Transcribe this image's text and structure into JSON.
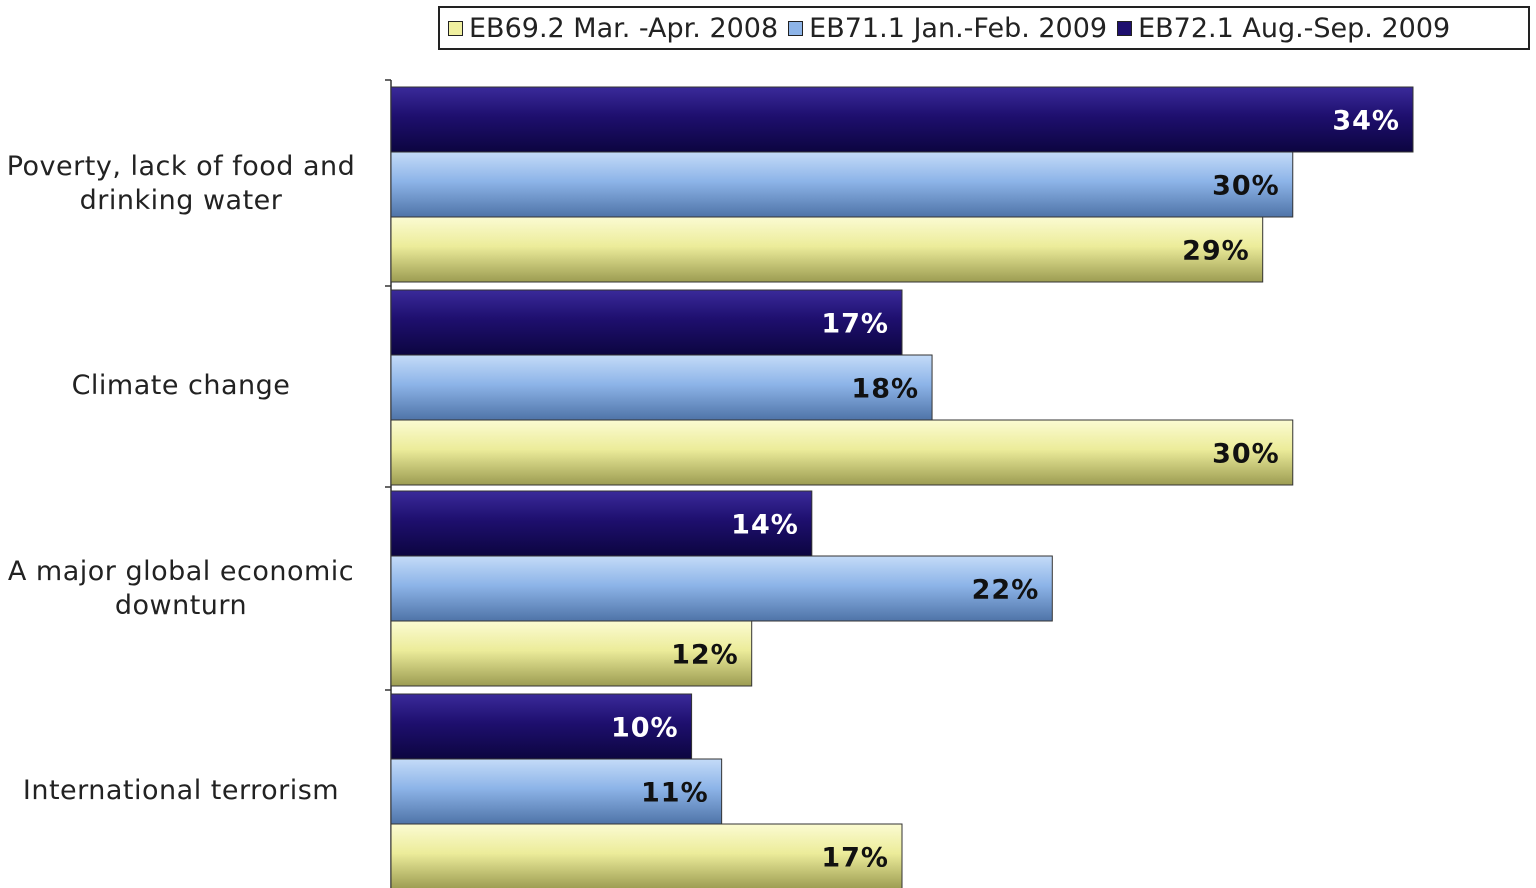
{
  "chart_data": {
    "type": "bar",
    "orientation": "horizontal",
    "categories": [
      "Poverty, lack of food and drinking water",
      "Climate change",
      "A major global economic downturn",
      "International terrorism"
    ],
    "series": [
      {
        "name": "EB72.1 Aug.-Sep. 2009",
        "color": "#1e0f6e",
        "values": [
          34,
          17,
          14,
          10
        ],
        "labels": [
          "34%",
          "17%",
          "14%",
          "10%"
        ]
      },
      {
        "name": "EB71.1 Jan.-Feb. 2009",
        "color": "#8db4e8",
        "values": [
          30,
          18,
          22,
          11
        ],
        "labels": [
          "30%",
          "18%",
          "22%",
          "11%"
        ]
      },
      {
        "name": "EB69.2 Mar. -Apr. 2008",
        "color": "#f0f0a0",
        "values": [
          29,
          30,
          12,
          17
        ],
        "labels": [
          "29%",
          "30%",
          "12%",
          "17%"
        ]
      }
    ],
    "legend": {
      "position": "top-right",
      "entries": [
        {
          "label": "EB69.2 Mar. -Apr. 2008",
          "color": "#f0f0a0"
        },
        {
          "label": "EB71.1 Jan.-Feb. 2009",
          "color": "#8db4e8"
        },
        {
          "label": "EB72.1 Aug.-Sep. 2009",
          "color": "#1e0f6e"
        }
      ]
    },
    "xlim": [
      0,
      34
    ],
    "grid": false
  }
}
